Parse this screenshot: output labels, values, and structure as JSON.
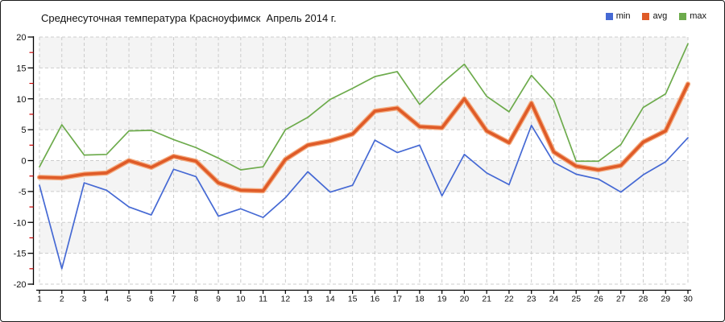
{
  "title": "Среднесуточная температура Красноуфимск  Апрель 2014 г.",
  "legend": [
    {
      "label": "min",
      "color": "#4569D4"
    },
    {
      "label": "avg",
      "color": "#DF5B28"
    },
    {
      "label": "max",
      "color": "#6DAB4C"
    }
  ],
  "axes": {
    "y_tick_labels": [
      "20",
      "15",
      "10",
      "5",
      "0",
      "-5",
      "-10",
      "-15",
      "-20"
    ],
    "x_tick_labels": [
      "1",
      "2",
      "3",
      "4",
      "5",
      "6",
      "7",
      "8",
      "9",
      "10",
      "11",
      "12",
      "13",
      "14",
      "15",
      "16",
      "17",
      "18",
      "19",
      "20",
      "21",
      "22",
      "23",
      "24",
      "25",
      "26",
      "27",
      "28",
      "29",
      "30"
    ]
  },
  "chart_data": {
    "type": "line",
    "title": "Среднесуточная температура Красноуфимск  Апрель 2014 г.",
    "xlabel": "",
    "ylabel": "",
    "x": [
      1,
      2,
      3,
      4,
      5,
      6,
      7,
      8,
      9,
      10,
      11,
      12,
      13,
      14,
      15,
      16,
      17,
      18,
      19,
      20,
      21,
      22,
      23,
      24,
      25,
      26,
      27,
      28,
      29,
      30
    ],
    "ylim": [
      -20,
      20
    ],
    "ytick_step": 5,
    "grid": true,
    "legend_position": "top-right",
    "series": [
      {
        "name": "min",
        "color": "#4569D4",
        "width": 1.7,
        "values": [
          -4.0,
          -17.5,
          -3.6,
          -4.8,
          -7.5,
          -8.8,
          -1.4,
          -2.6,
          -9.0,
          -7.8,
          -9.2,
          -6.0,
          -1.8,
          -5.1,
          -4.0,
          3.3,
          1.3,
          2.5,
          -5.7,
          1.0,
          -2.0,
          -3.9,
          5.7,
          -0.3,
          -2.2,
          -3.0,
          -5.1,
          -2.3,
          -0.2,
          3.7
        ]
      },
      {
        "name": "avg",
        "color": "#DF5B28",
        "halo_color": "#F4AC80",
        "width": 3.6,
        "values": [
          -2.7,
          -2.8,
          -2.2,
          -2.0,
          0.0,
          -1.1,
          0.7,
          -0.1,
          -3.6,
          -4.8,
          -4.9,
          0.2,
          2.5,
          3.2,
          4.3,
          8.0,
          8.5,
          5.5,
          5.3,
          10.0,
          4.8,
          2.9,
          9.3,
          1.4,
          -0.9,
          -1.5,
          -0.8,
          3.0,
          4.8,
          12.4
        ]
      },
      {
        "name": "max",
        "color": "#6DAB4C",
        "width": 1.7,
        "values": [
          -1.0,
          5.8,
          0.9,
          1.0,
          4.8,
          4.9,
          3.4,
          2.1,
          0.4,
          -1.5,
          -1.0,
          5.0,
          7.0,
          9.9,
          11.7,
          13.6,
          14.4,
          9.1,
          12.5,
          15.6,
          10.4,
          7.9,
          13.8,
          9.8,
          -0.1,
          -0.1,
          2.6,
          8.6,
          10.8,
          18.9
        ]
      }
    ],
    "styles": {
      "band_color": "#f4f4f4",
      "grid_color": "#cccccc",
      "axis_color": "#000000",
      "minor_tick_color": "#cc0000",
      "text_color": "#111111"
    }
  }
}
